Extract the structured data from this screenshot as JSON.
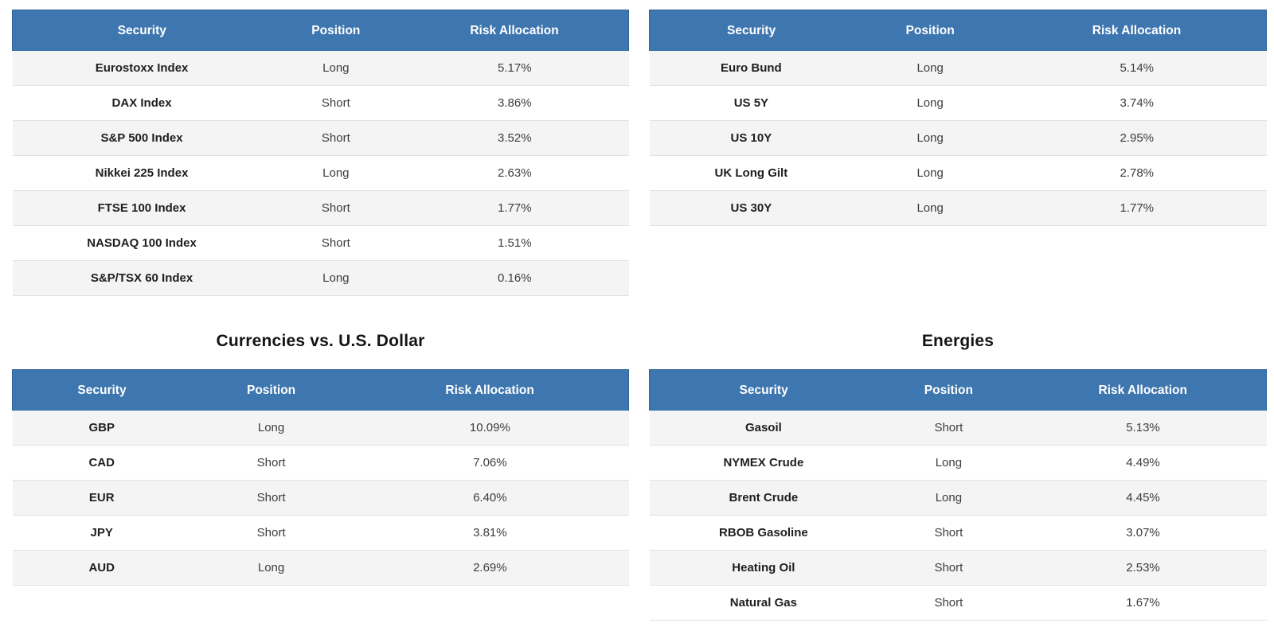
{
  "colors": {
    "header_bg": "#3e76af",
    "header_border": "#31639a",
    "header_text": "#ffffff",
    "row_alt_bg": "#f4f4f4",
    "row_bg": "#ffffff",
    "row_border": "#e1e1e1",
    "body_text": "#3d3d3d",
    "security_text": "#1f1f1f",
    "title_text": "#141414"
  },
  "chart_data": [
    {
      "type": "table",
      "title": "",
      "headers": [
        "Security",
        "Position",
        "Risk Allocation"
      ],
      "rows": [
        [
          "Eurostoxx Index",
          "Long",
          "5.17%"
        ],
        [
          "DAX Index",
          "Short",
          "3.86%"
        ],
        [
          "S&P 500 Index",
          "Short",
          "3.52%"
        ],
        [
          "Nikkei 225 Index",
          "Long",
          "2.63%"
        ],
        [
          "FTSE 100 Index",
          "Short",
          "1.77%"
        ],
        [
          "NASDAQ 100 Index",
          "Short",
          "1.51%"
        ],
        [
          "S&P/TSX 60 Index",
          "Long",
          "0.16%"
        ]
      ]
    },
    {
      "type": "table",
      "title": "",
      "headers": [
        "Security",
        "Position",
        "Risk Allocation"
      ],
      "rows": [
        [
          "Euro Bund",
          "Long",
          "5.14%"
        ],
        [
          "US 5Y",
          "Long",
          "3.74%"
        ],
        [
          "US 10Y",
          "Long",
          "2.95%"
        ],
        [
          "UK Long Gilt",
          "Long",
          "2.78%"
        ],
        [
          "US 30Y",
          "Long",
          "1.77%"
        ]
      ]
    },
    {
      "type": "table",
      "title": "Currencies vs. U.S. Dollar",
      "headers": [
        "Security",
        "Position",
        "Risk Allocation"
      ],
      "rows": [
        [
          "GBP",
          "Long",
          "10.09%"
        ],
        [
          "CAD",
          "Short",
          "7.06%"
        ],
        [
          "EUR",
          "Short",
          "6.40%"
        ],
        [
          "JPY",
          "Short",
          "3.81%"
        ],
        [
          "AUD",
          "Long",
          "2.69%"
        ]
      ]
    },
    {
      "type": "table",
      "title": "Energies",
      "headers": [
        "Security",
        "Position",
        "Risk Allocation"
      ],
      "rows": [
        [
          "Gasoil",
          "Short",
          "5.13%"
        ],
        [
          "NYMEX Crude",
          "Long",
          "4.49%"
        ],
        [
          "Brent Crude",
          "Long",
          "4.45%"
        ],
        [
          "RBOB Gasoline",
          "Short",
          "3.07%"
        ],
        [
          "Heating Oil",
          "Short",
          "2.53%"
        ],
        [
          "Natural Gas",
          "Short",
          "1.67%"
        ]
      ]
    }
  ]
}
